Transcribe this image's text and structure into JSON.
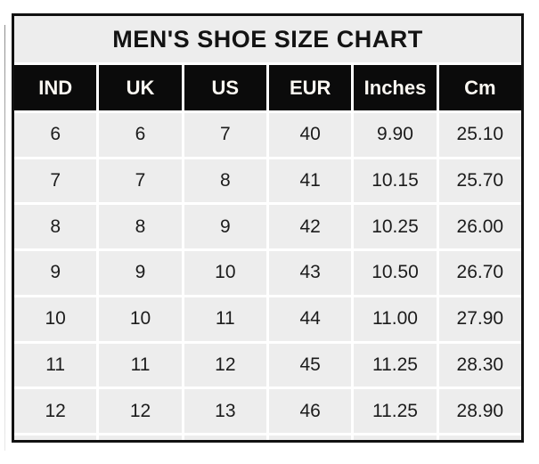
{
  "chart_data": {
    "type": "table",
    "title": "MEN'S SHOE SIZE CHART",
    "headers": [
      "IND",
      "UK",
      "US",
      "EUR",
      "Inches",
      "Cm"
    ],
    "rows": [
      [
        "6",
        "6",
        "7",
        "40",
        "9.90",
        "25.10"
      ],
      [
        "7",
        "7",
        "8",
        "41",
        "10.15",
        "25.70"
      ],
      [
        "8",
        "8",
        "9",
        "42",
        "10.25",
        "26.00"
      ],
      [
        "9",
        "9",
        "10",
        "43",
        "10.50",
        "26.70"
      ],
      [
        "10",
        "10",
        "11",
        "44",
        "11.00",
        "27.90"
      ],
      [
        "11",
        "11",
        "12",
        "45",
        "11.25",
        "28.30"
      ],
      [
        "12",
        "12",
        "13",
        "46",
        "11.25",
        "28.90"
      ]
    ]
  },
  "colors": {
    "header-bg": "#0b0b0b",
    "header-text": "#fbf8f2",
    "cell-bg": "#ededed",
    "cell-text": "#1c1c1c",
    "title-color": "#131313",
    "border-color": "#111111",
    "gutter-color": "#ffffff"
  }
}
